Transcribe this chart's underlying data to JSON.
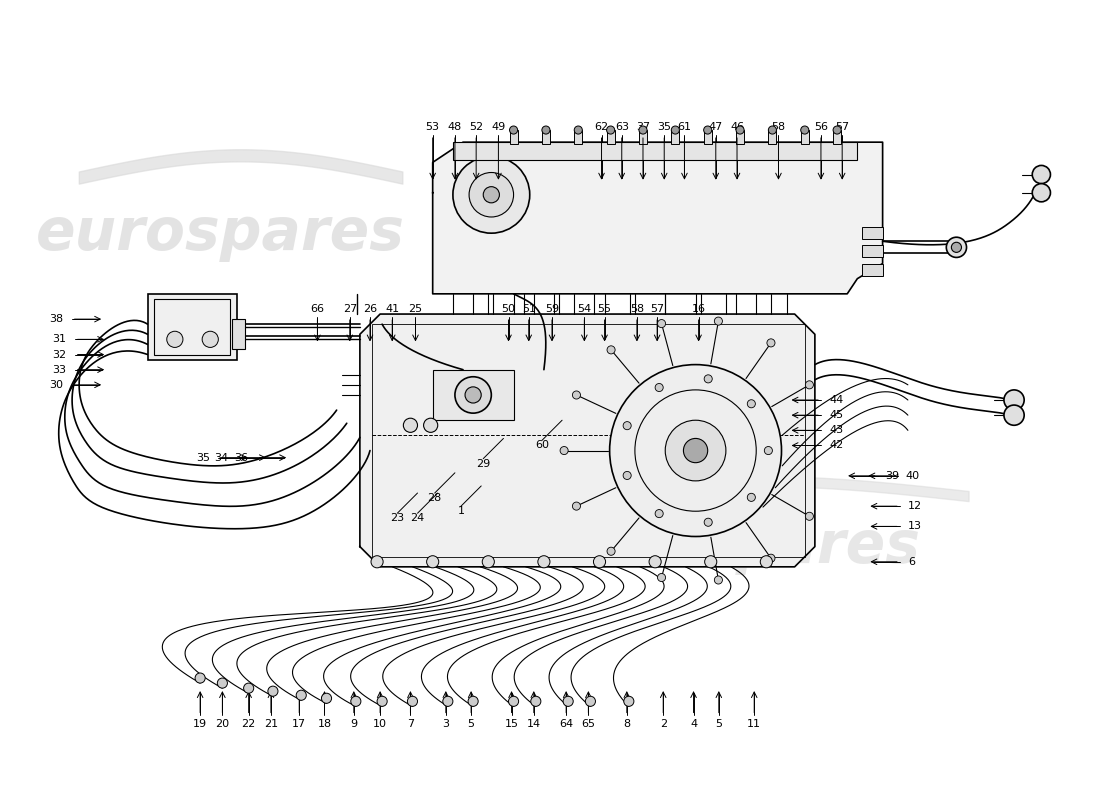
{
  "bg_color": "#ffffff",
  "line_color": "#000000",
  "watermark_color": "#d8d8d8",
  "lw_main": 1.2,
  "lw_thin": 0.8,
  "lw_med": 1.0,
  "top_labels": [
    [
      "53",
      430,
      685
    ],
    [
      "48",
      452,
      685
    ],
    [
      "52",
      473,
      685
    ],
    [
      "49",
      495,
      685
    ],
    [
      "62",
      597,
      685
    ],
    [
      "63",
      617,
      685
    ],
    [
      "37",
      638,
      685
    ],
    [
      "35",
      659,
      685
    ],
    [
      "61",
      679,
      685
    ],
    [
      "47",
      710,
      685
    ],
    [
      "46",
      731,
      685
    ],
    [
      "58",
      772,
      685
    ],
    [
      "56",
      814,
      685
    ],
    [
      "57",
      835,
      685
    ]
  ],
  "mid_labels": [
    [
      "66",
      316,
      505
    ],
    [
      "27",
      348,
      505
    ],
    [
      "26",
      368,
      505
    ],
    [
      "41",
      390,
      505
    ],
    [
      "25",
      413,
      505
    ],
    [
      "50",
      505,
      505
    ],
    [
      "51",
      525,
      505
    ],
    [
      "59",
      548,
      505
    ],
    [
      "54",
      580,
      505
    ],
    [
      "55",
      600,
      505
    ],
    [
      "58",
      632,
      505
    ],
    [
      "57",
      652,
      505
    ],
    [
      "16",
      693,
      505
    ]
  ],
  "left_labels": [
    [
      "30",
      65,
      430
    ],
    [
      "33",
      68,
      445
    ],
    [
      "32",
      68,
      460
    ],
    [
      "31",
      68,
      475
    ],
    [
      "38",
      65,
      495
    ],
    [
      "35",
      210,
      358
    ],
    [
      "34",
      228,
      358
    ],
    [
      "36",
      248,
      358
    ]
  ],
  "bottom_labels": [
    [
      "19",
      200,
      95
    ],
    [
      "20",
      222,
      95
    ],
    [
      "22",
      248,
      95
    ],
    [
      "21",
      270,
      95
    ],
    [
      "17",
      298,
      95
    ],
    [
      "18",
      323,
      95
    ],
    [
      "9",
      352,
      95
    ],
    [
      "10",
      378,
      95
    ],
    [
      "7",
      408,
      95
    ],
    [
      "3",
      443,
      95
    ],
    [
      "5",
      468,
      95
    ],
    [
      "15",
      508,
      95
    ],
    [
      "14",
      530,
      95
    ],
    [
      "64",
      562,
      95
    ],
    [
      "65",
      584,
      95
    ],
    [
      "8",
      622,
      95
    ],
    [
      "2",
      658,
      95
    ],
    [
      "4",
      688,
      95
    ],
    [
      "5",
      713,
      95
    ],
    [
      "11",
      748,
      95
    ]
  ],
  "right_labels": [
    [
      "39",
      878,
      340
    ],
    [
      "40",
      898,
      340
    ],
    [
      "12",
      900,
      310
    ],
    [
      "13",
      900,
      290
    ],
    [
      "6",
      900,
      255
    ],
    [
      "44",
      822,
      415
    ],
    [
      "45",
      822,
      400
    ],
    [
      "43",
      822,
      385
    ],
    [
      "42",
      822,
      370
    ]
  ],
  "center_labels": [
    [
      "1",
      458,
      305
    ],
    [
      "23",
      395,
      298
    ],
    [
      "24",
      415,
      298
    ],
    [
      "28",
      432,
      318
    ],
    [
      "29",
      480,
      352
    ],
    [
      "60",
      538,
      370
    ]
  ]
}
